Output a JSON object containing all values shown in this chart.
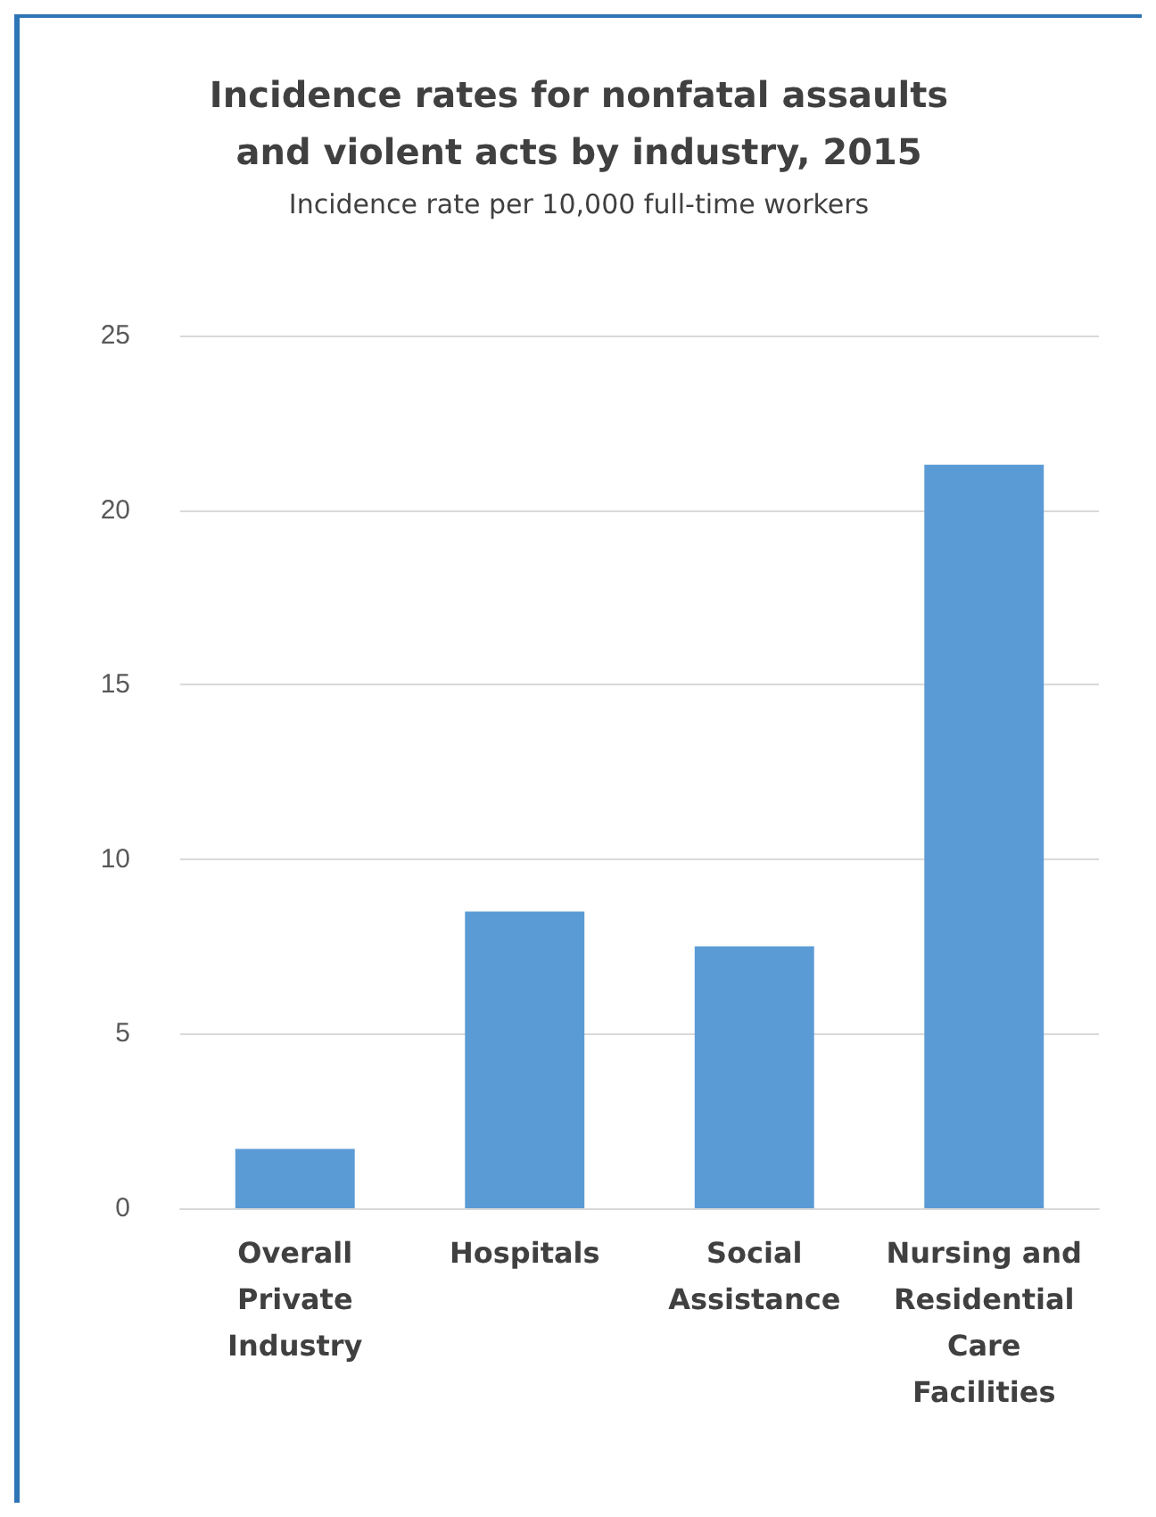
{
  "chart_data": {
    "type": "bar",
    "title": "Incidence rates for nonfatal assaults\nand violent acts by industry, 2015",
    "subtitle": "Incidence rate per 10,000 full-time workers",
    "categories": [
      "Overall\nPrivate\nIndustry",
      "Hospitals",
      "Social\nAssistance",
      "Nursing and\nResidential\nCare\nFacilities"
    ],
    "values": [
      1.7,
      8.5,
      7.5,
      21.3
    ],
    "color": "#5b9bd5",
    "ylim": [
      0,
      25
    ],
    "yticks": [
      0,
      5,
      10,
      15,
      20,
      25
    ],
    "grid": "y"
  }
}
